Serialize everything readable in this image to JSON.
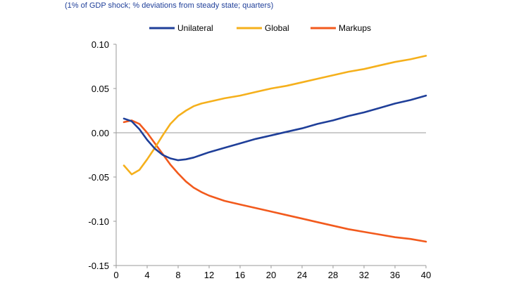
{
  "subtitle": "(1% of GDP shock; % deviations from steady state; quarters)",
  "chart_data": {
    "type": "line",
    "title": "",
    "xlabel": "",
    "ylabel": "",
    "xlim": [
      0,
      40
    ],
    "ylim": [
      -0.15,
      0.1
    ],
    "x_ticks": [
      0,
      4,
      8,
      12,
      16,
      20,
      24,
      28,
      32,
      36,
      40
    ],
    "y_ticks": [
      0.1,
      0.05,
      0.0,
      -0.05,
      -0.1,
      -0.15
    ],
    "y_tick_labels": [
      "0.10",
      "0.05",
      "0.00",
      "-0.05",
      "-0.10",
      "-0.15"
    ],
    "grid": false,
    "legend_position": "top",
    "series": [
      {
        "name": "Unilateral",
        "color": "#1f3f99",
        "x": [
          1,
          2,
          3,
          4,
          5,
          6,
          7,
          8,
          9,
          10,
          11,
          12,
          14,
          16,
          18,
          20,
          22,
          24,
          26,
          28,
          30,
          32,
          34,
          36,
          38,
          40
        ],
        "y": [
          0.016,
          0.013,
          0.004,
          -0.008,
          -0.018,
          -0.025,
          -0.029,
          -0.031,
          -0.03,
          -0.028,
          -0.025,
          -0.022,
          -0.017,
          -0.012,
          -0.007,
          -0.003,
          0.001,
          0.005,
          0.01,
          0.014,
          0.019,
          0.023,
          0.028,
          0.033,
          0.037,
          0.042
        ]
      },
      {
        "name": "Global",
        "color": "#f5b01c",
        "x": [
          1,
          2,
          3,
          4,
          5,
          6,
          7,
          8,
          9,
          10,
          11,
          12,
          14,
          16,
          18,
          20,
          22,
          24,
          26,
          28,
          30,
          32,
          34,
          36,
          38,
          40
        ],
        "y": [
          -0.037,
          -0.047,
          -0.042,
          -0.03,
          -0.017,
          -0.003,
          0.01,
          0.019,
          0.025,
          0.03,
          0.033,
          0.035,
          0.039,
          0.042,
          0.046,
          0.05,
          0.053,
          0.057,
          0.061,
          0.065,
          0.069,
          0.072,
          0.076,
          0.08,
          0.083,
          0.087
        ]
      },
      {
        "name": "Markups",
        "color": "#f25a1d",
        "x": [
          1,
          2,
          3,
          4,
          5,
          6,
          7,
          8,
          9,
          10,
          11,
          12,
          14,
          16,
          18,
          20,
          22,
          24,
          26,
          28,
          30,
          32,
          34,
          36,
          38,
          40
        ],
        "y": [
          0.012,
          0.014,
          0.01,
          0.0,
          -0.012,
          -0.024,
          -0.036,
          -0.046,
          -0.055,
          -0.062,
          -0.067,
          -0.071,
          -0.077,
          -0.081,
          -0.085,
          -0.089,
          -0.093,
          -0.097,
          -0.101,
          -0.105,
          -0.109,
          -0.112,
          -0.115,
          -0.118,
          -0.12,
          -0.123
        ]
      }
    ]
  }
}
